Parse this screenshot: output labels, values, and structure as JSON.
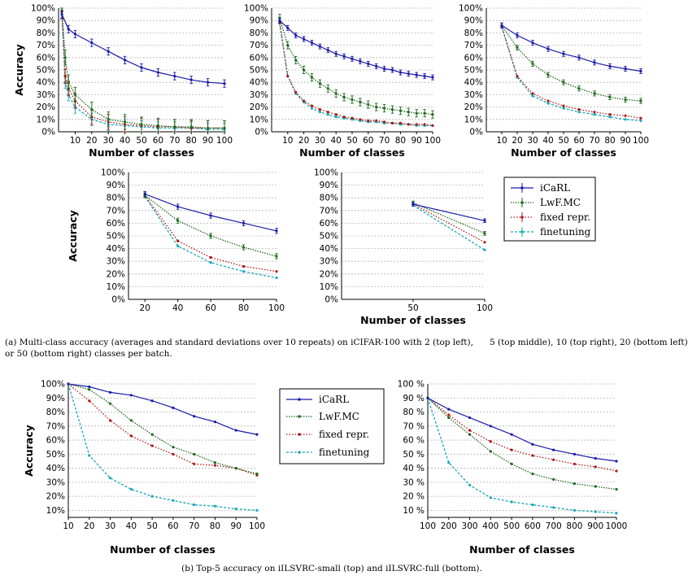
{
  "captions": {
    "a_line1": "(a) Multi-class accuracy (averages and standard deviations over 10 repeats) on iCIFAR-100 with 2 (top left),      5 (top middle), 10 (top right), 20 (bottom left)",
    "a_line2": "or 50 (bottom right) classes per batch.",
    "b": "(b) Top-5 accuracy on iILSVRC-small (top) and iILSVRC-full (bottom)."
  },
  "colors": {
    "icarl": "#1a1aa8",
    "lwf": "#1e6b1e",
    "fixed": "#b01818",
    "finetuning": "#1aa8b8"
  },
  "chart_data": [
    {
      "id": "cifar-2",
      "type": "line",
      "xlabel": "Number of classes",
      "ylabel": "Accuracy",
      "xlim": [
        0,
        100
      ],
      "ylim": [
        0,
        100
      ],
      "xticks": [
        10,
        20,
        30,
        40,
        50,
        60,
        70,
        80,
        90,
        100
      ],
      "yticks": [
        0,
        10,
        20,
        30,
        40,
        50,
        60,
        70,
        80,
        90,
        100
      ],
      "ytick_suffix": "%",
      "series": [
        {
          "name": "iCaRL",
          "x": [
            2,
            6,
            10,
            20,
            30,
            40,
            50,
            60,
            70,
            80,
            90,
            100
          ],
          "values": [
            95,
            83,
            79,
            72,
            65,
            58,
            52,
            48,
            45,
            42,
            40,
            39
          ]
        },
        {
          "name": "LwF.MC",
          "x": [
            2,
            4,
            6,
            10,
            20,
            30,
            40,
            50,
            60,
            70,
            80,
            90,
            100
          ],
          "values": [
            98,
            60,
            40,
            30,
            18,
            10,
            8,
            6,
            5,
            4,
            4,
            3,
            3
          ]
        },
        {
          "name": "fixed repr.",
          "x": [
            2,
            4,
            6,
            10,
            20,
            30,
            40,
            50,
            60,
            70,
            80,
            90,
            100
          ],
          "values": [
            97,
            45,
            35,
            25,
            12,
            8,
            6,
            5,
            4,
            4,
            3,
            3,
            3
          ]
        },
        {
          "name": "finetuning",
          "x": [
            2,
            4,
            6,
            10,
            20,
            30,
            40,
            50,
            60,
            70,
            80,
            90,
            100
          ],
          "values": [
            97,
            40,
            30,
            20,
            10,
            6,
            5,
            4,
            3,
            3,
            3,
            2,
            2
          ]
        }
      ]
    },
    {
      "id": "cifar-5",
      "type": "line",
      "xlabel": "Number of classes",
      "ylabel": "",
      "xlim": [
        0,
        100
      ],
      "ylim": [
        0,
        100
      ],
      "xticks": [
        10,
        20,
        30,
        40,
        50,
        60,
        70,
        80,
        90,
        100
      ],
      "yticks": [
        0,
        10,
        20,
        30,
        40,
        50,
        60,
        70,
        80,
        90,
        100
      ],
      "ytick_suffix": "%",
      "series": [
        {
          "name": "iCaRL",
          "x": [
            5,
            10,
            15,
            20,
            25,
            30,
            35,
            40,
            45,
            50,
            55,
            60,
            65,
            70,
            75,
            80,
            85,
            90,
            95,
            100
          ],
          "values": [
            90,
            84,
            78,
            75,
            72,
            69,
            66,
            63,
            61,
            59,
            57,
            55,
            53,
            51,
            50,
            48,
            47,
            46,
            45,
            44
          ]
        },
        {
          "name": "LwF.MC",
          "x": [
            5,
            10,
            15,
            20,
            25,
            30,
            35,
            40,
            45,
            50,
            55,
            60,
            65,
            70,
            75,
            80,
            85,
            90,
            95,
            100
          ],
          "values": [
            92,
            70,
            58,
            50,
            44,
            39,
            35,
            31,
            28,
            26,
            24,
            22,
            20,
            19,
            18,
            17,
            16,
            15,
            15,
            14
          ]
        },
        {
          "name": "fixed repr.",
          "x": [
            5,
            10,
            15,
            20,
            25,
            30,
            35,
            40,
            45,
            50,
            55,
            60,
            65,
            70,
            75,
            80,
            85,
            90,
            95,
            100
          ],
          "values": [
            88,
            45,
            32,
            25,
            21,
            18,
            16,
            14,
            12,
            11,
            10,
            9,
            9,
            8,
            7,
            7,
            6,
            6,
            6,
            5
          ]
        },
        {
          "name": "finetuning",
          "x": [
            5,
            10,
            15,
            20,
            25,
            30,
            35,
            40,
            45,
            50,
            55,
            60,
            65,
            70,
            75,
            80,
            85,
            90,
            95,
            100
          ],
          "values": [
            88,
            45,
            31,
            24,
            19,
            16,
            14,
            12,
            11,
            10,
            9,
            8,
            8,
            7,
            7,
            6,
            6,
            5,
            5,
            5
          ]
        }
      ]
    },
    {
      "id": "cifar-10",
      "type": "line",
      "xlabel": "Number of classes",
      "ylabel": "",
      "xlim": [
        0,
        100
      ],
      "ylim": [
        0,
        100
      ],
      "xticks": [
        10,
        20,
        30,
        40,
        50,
        60,
        70,
        80,
        90,
        100
      ],
      "yticks": [
        0,
        10,
        20,
        30,
        40,
        50,
        60,
        70,
        80,
        90,
        100
      ],
      "ytick_suffix": "%",
      "series": [
        {
          "name": "iCaRL",
          "x": [
            10,
            20,
            30,
            40,
            50,
            60,
            70,
            80,
            90,
            100
          ],
          "values": [
            86,
            78,
            72,
            67,
            63,
            60,
            56,
            53,
            51,
            49
          ]
        },
        {
          "name": "LwF.MC",
          "x": [
            10,
            20,
            30,
            40,
            50,
            60,
            70,
            80,
            90,
            100
          ],
          "values": [
            86,
            68,
            55,
            46,
            40,
            35,
            31,
            28,
            26,
            25
          ]
        },
        {
          "name": "fixed repr.",
          "x": [
            10,
            20,
            30,
            40,
            50,
            60,
            70,
            80,
            90,
            100
          ],
          "values": [
            85,
            45,
            31,
            25,
            21,
            18,
            16,
            14,
            13,
            11
          ]
        },
        {
          "name": "finetuning",
          "x": [
            10,
            20,
            30,
            40,
            50,
            60,
            70,
            80,
            90,
            100
          ],
          "values": [
            85,
            44,
            29,
            23,
            19,
            16,
            14,
            12,
            10,
            9
          ]
        }
      ]
    },
    {
      "id": "cifar-20",
      "type": "line",
      "xlabel": "",
      "ylabel": "Accuracy",
      "xlim": [
        10,
        100
      ],
      "ylim": [
        0,
        100
      ],
      "xticks": [
        20,
        40,
        60,
        80,
        100
      ],
      "yticks": [
        0,
        10,
        20,
        30,
        40,
        50,
        60,
        70,
        80,
        90,
        100
      ],
      "ytick_suffix": "%",
      "series": [
        {
          "name": "iCaRL",
          "x": [
            20,
            40,
            60,
            80,
            100
          ],
          "values": [
            83,
            73,
            66,
            60,
            54
          ]
        },
        {
          "name": "LwF.MC",
          "x": [
            20,
            40,
            60,
            80,
            100
          ],
          "values": [
            82,
            62,
            50,
            41,
            34
          ]
        },
        {
          "name": "fixed repr.",
          "x": [
            20,
            40,
            60,
            80,
            100
          ],
          "values": [
            82,
            46,
            33,
            26,
            22
          ]
        },
        {
          "name": "finetuning",
          "x": [
            20,
            40,
            60,
            80,
            100
          ],
          "values": [
            81,
            42,
            29,
            22,
            17
          ]
        }
      ]
    },
    {
      "id": "cifar-50",
      "type": "line",
      "xlabel": "Number of classes",
      "ylabel": "",
      "xlim": [
        0,
        100
      ],
      "ylim": [
        0,
        100
      ],
      "xticks": [
        50,
        100
      ],
      "yticks": [
        0,
        10,
        20,
        30,
        40,
        50,
        60,
        70,
        80,
        90,
        100
      ],
      "ytick_suffix": "%",
      "series": [
        {
          "name": "iCaRL",
          "x": [
            50,
            100
          ],
          "values": [
            75,
            62
          ]
        },
        {
          "name": "LwF.MC",
          "x": [
            50,
            100
          ],
          "values": [
            76,
            52
          ]
        },
        {
          "name": "fixed repr.",
          "x": [
            50,
            100
          ],
          "values": [
            75,
            45
          ]
        },
        {
          "name": "finetuning",
          "x": [
            50,
            100
          ],
          "values": [
            74,
            39
          ]
        }
      ]
    },
    {
      "id": "ilsvrc-small",
      "type": "line",
      "xlabel": "Number of classes",
      "ylabel": "Accuracy",
      "xlim": [
        10,
        100
      ],
      "ylim": [
        5,
        100
      ],
      "xticks": [
        10,
        20,
        30,
        40,
        50,
        60,
        70,
        80,
        90,
        100
      ],
      "yticks": [
        10,
        20,
        30,
        40,
        50,
        60,
        70,
        80,
        90,
        100
      ],
      "ytick_suffix": "%",
      "series": [
        {
          "name": "iCaRL",
          "x": [
            10,
            20,
            30,
            40,
            50,
            60,
            70,
            80,
            90,
            100
          ],
          "values": [
            100,
            98,
            94,
            92,
            88,
            83,
            77,
            73,
            67,
            64
          ]
        },
        {
          "name": "LwF.MC",
          "x": [
            10,
            20,
            30,
            40,
            50,
            60,
            70,
            80,
            90,
            100
          ],
          "values": [
            100,
            96,
            86,
            74,
            64,
            55,
            50,
            44,
            40,
            36
          ]
        },
        {
          "name": "fixed repr.",
          "x": [
            10,
            20,
            30,
            40,
            50,
            60,
            70,
            80,
            90,
            100
          ],
          "values": [
            100,
            88,
            74,
            63,
            56,
            50,
            43,
            42,
            40,
            35
          ]
        },
        {
          "name": "finetuning",
          "x": [
            10,
            20,
            30,
            40,
            50,
            60,
            70,
            80,
            90,
            100
          ],
          "values": [
            100,
            49,
            33,
            25,
            20,
            17,
            14,
            13,
            11,
            10
          ]
        }
      ]
    },
    {
      "id": "ilsvrc-full",
      "type": "line",
      "xlabel": "Number of classes",
      "ylabel": "",
      "xlim": [
        100,
        1000
      ],
      "ylim": [
        5,
        100
      ],
      "xticks": [
        100,
        200,
        300,
        400,
        500,
        600,
        700,
        800,
        900,
        1000
      ],
      "yticks": [
        10,
        20,
        30,
        40,
        50,
        60,
        70,
        80,
        90,
        100
      ],
      "ytick_suffix": " %",
      "series": [
        {
          "name": "iCaRL",
          "x": [
            100,
            200,
            300,
            400,
            500,
            600,
            700,
            800,
            900,
            1000
          ],
          "values": [
            90,
            82,
            76,
            70,
            64,
            57,
            53,
            50,
            47,
            45
          ]
        },
        {
          "name": "LwF.MC",
          "x": [
            100,
            200,
            300,
            400,
            500,
            600,
            700,
            800,
            900,
            1000
          ],
          "values": [
            90,
            76,
            64,
            52,
            43,
            36,
            32,
            29,
            27,
            25
          ]
        },
        {
          "name": "fixed repr.",
          "x": [
            100,
            200,
            300,
            400,
            500,
            600,
            700,
            800,
            900,
            1000
          ],
          "values": [
            90,
            78,
            67,
            59,
            53,
            49,
            46,
            43,
            41,
            38
          ]
        },
        {
          "name": "finetuning",
          "x": [
            100,
            200,
            300,
            400,
            500,
            600,
            700,
            800,
            900,
            1000
          ],
          "values": [
            90,
            44,
            28,
            19,
            16,
            14,
            12,
            10,
            9,
            8
          ]
        }
      ]
    }
  ]
}
